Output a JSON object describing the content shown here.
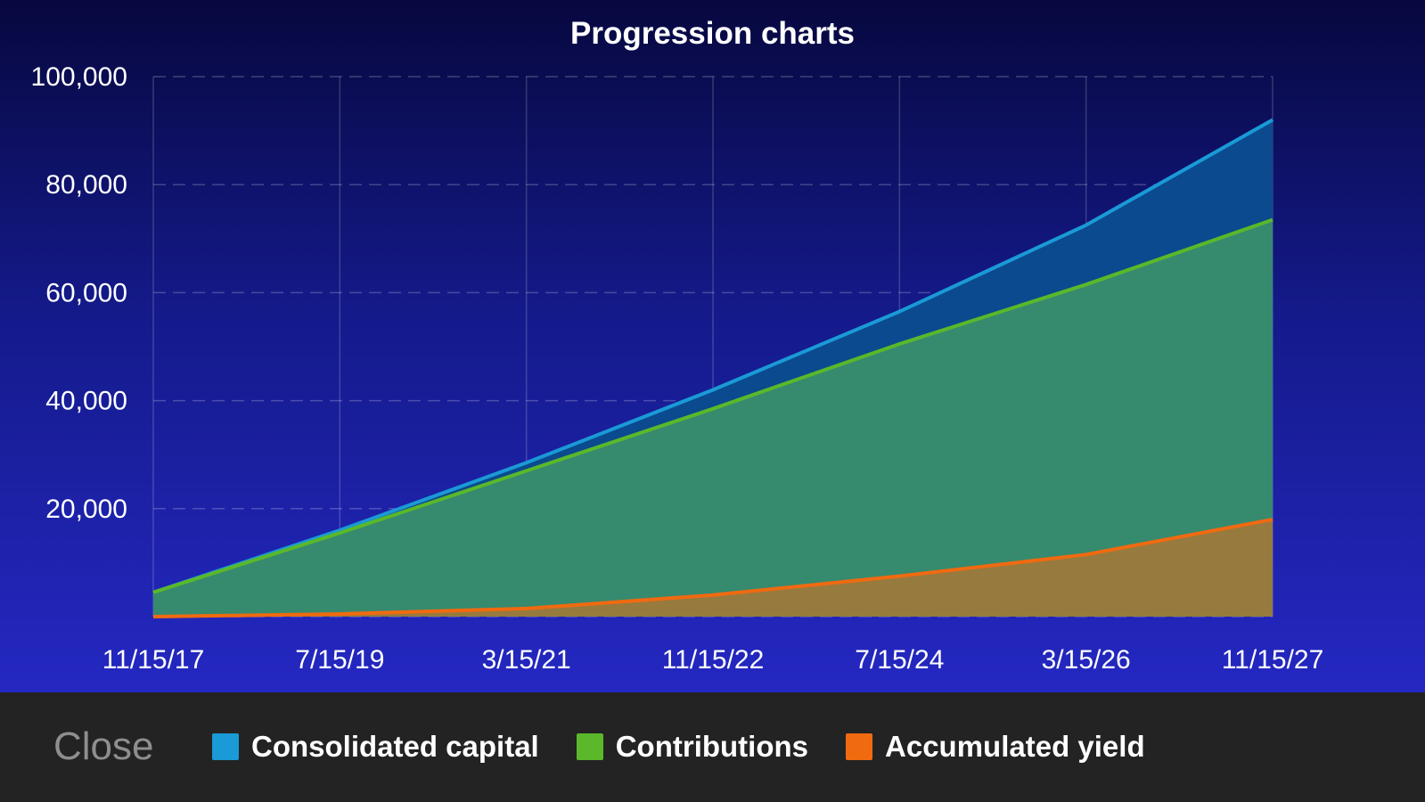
{
  "chart_data": {
    "type": "area",
    "title": "Progression charts",
    "x": [
      "11/15/17",
      "7/15/19",
      "3/15/21",
      "11/15/22",
      "7/15/24",
      "3/15/26",
      "11/15/27"
    ],
    "x_tick_labels": [
      "11/15/17",
      "7/15/19",
      "3/15/21",
      "11/15/22",
      "7/15/24",
      "3/15/26",
      "11/15/27"
    ],
    "y_tick_labels": [
      "100,000",
      "80,000",
      "60,000",
      "40,000",
      "20,000"
    ],
    "y_ticks": [
      100000,
      80000,
      60000,
      40000,
      20000
    ],
    "ylim": [
      0,
      100000
    ],
    "grid": true,
    "legend_position": "bottom",
    "stacked": false,
    "series": [
      {
        "name": "Consolidated capital",
        "color": "#1a9ad6",
        "fill": "#0b4a8e",
        "values": [
          4500,
          16000,
          28500,
          42000,
          56500,
          72500,
          92000
        ]
      },
      {
        "name": "Contributions",
        "color": "#5ab82a",
        "fill": "#368a6e",
        "values": [
          4500,
          15500,
          27000,
          38500,
          50500,
          61500,
          73500
        ]
      },
      {
        "name": "Accumulated yield",
        "color": "#f06a10",
        "fill": "#977a3e",
        "values": [
          0,
          500,
          1500,
          4000,
          7500,
          11500,
          18000
        ]
      }
    ]
  },
  "footer": {
    "close_label": "Close"
  }
}
